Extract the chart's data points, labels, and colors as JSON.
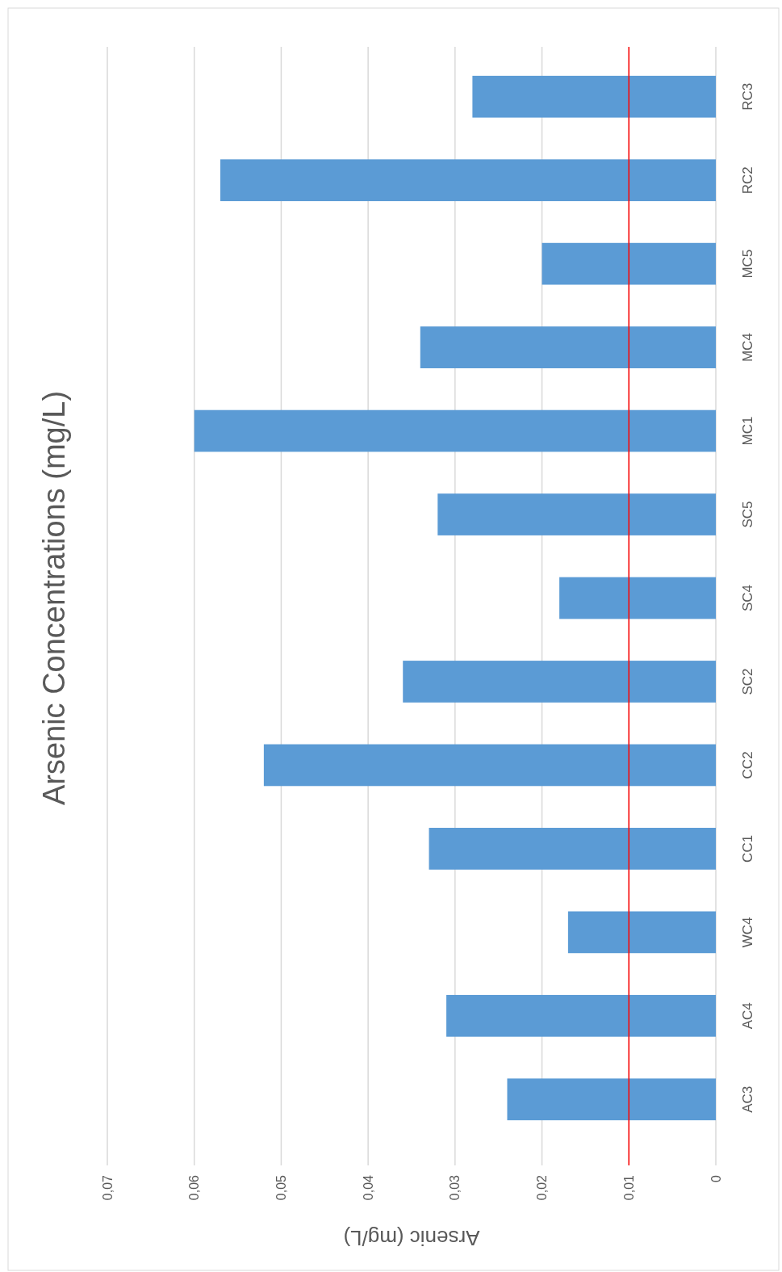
{
  "chart_data": {
    "type": "bar",
    "orientation": "horizontal",
    "title": "Arsenic Concentrations (mg/L)",
    "xlabel": "Arsenic (mg/L)",
    "categories": [
      "RC3",
      "RC2",
      "MC5",
      "MC4",
      "MC1",
      "SC5",
      "SC4",
      "SC2",
      "CC2",
      "CC1",
      "WC4",
      "AC4",
      "AC3"
    ],
    "values": [
      0.028,
      0.057,
      0.02,
      0.034,
      0.06,
      0.032,
      0.018,
      0.036,
      0.052,
      0.033,
      0.017,
      0.031,
      0.024
    ],
    "color": "#5b9bd5",
    "xlim": [
      0.07,
      0
    ],
    "xticks": [
      {
        "value": 0.07,
        "label": "0,07"
      },
      {
        "value": 0.06,
        "label": "0,06"
      },
      {
        "value": 0.05,
        "label": "0,05"
      },
      {
        "value": 0.04,
        "label": "0,04"
      },
      {
        "value": 0.03,
        "label": "0,03"
      },
      {
        "value": 0.02,
        "label": "0,02"
      },
      {
        "value": 0.01,
        "label": "0,01"
      },
      0
    ],
    "grid": "x",
    "ref_lines": [
      {
        "axis": "x",
        "value": 0.01,
        "color": "#ff0000"
      }
    ]
  }
}
